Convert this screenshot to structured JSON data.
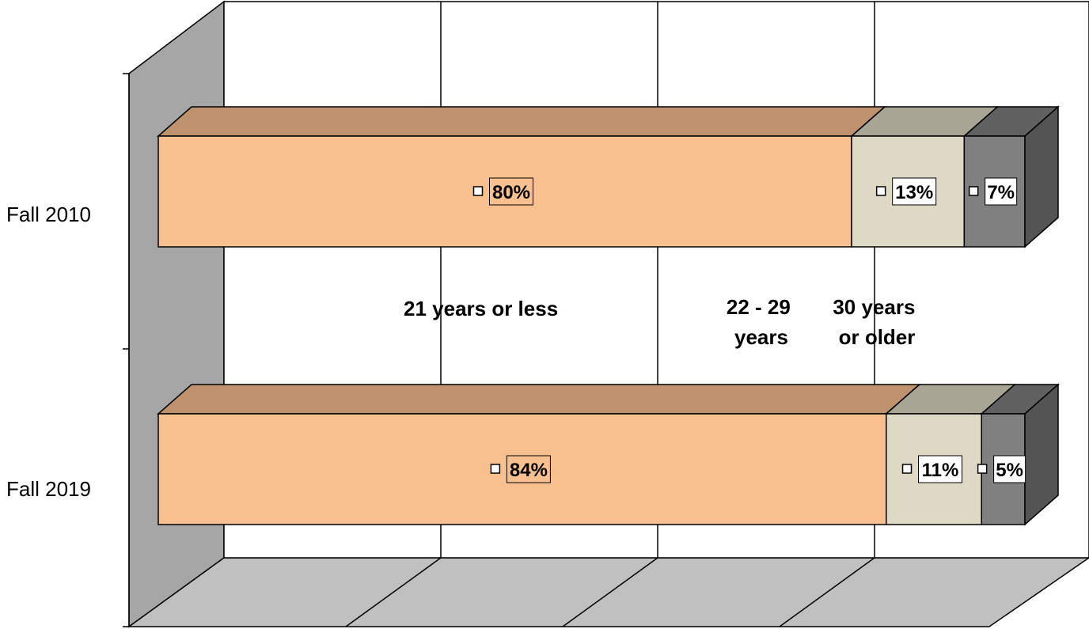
{
  "chart_data": {
    "type": "bar",
    "orientation": "horizontal",
    "stacked": true,
    "percent_stacked": true,
    "three_d": true,
    "categories": [
      "Fall 2010",
      "Fall 2019"
    ],
    "series": [
      {
        "name": "21  years or less",
        "values": [
          80,
          84
        ],
        "color": "#F9C08F"
      },
      {
        "name": "22 - 29 years",
        "values": [
          13,
          11
        ],
        "color": "#DDD9C4"
      },
      {
        "name": "30 years or older",
        "values": [
          7,
          5
        ],
        "color": "#808080"
      }
    ],
    "data_labels": [
      [
        "80%",
        "84%"
      ],
      [
        "13%",
        "11%"
      ],
      [
        "7%",
        "5%"
      ]
    ],
    "xlim": [
      0,
      100
    ],
    "grid": true,
    "legend": "none",
    "colors": {
      "wall_side": "#A6A6A6",
      "floor": "#C0C0C0",
      "grid_line": "#000000"
    }
  }
}
